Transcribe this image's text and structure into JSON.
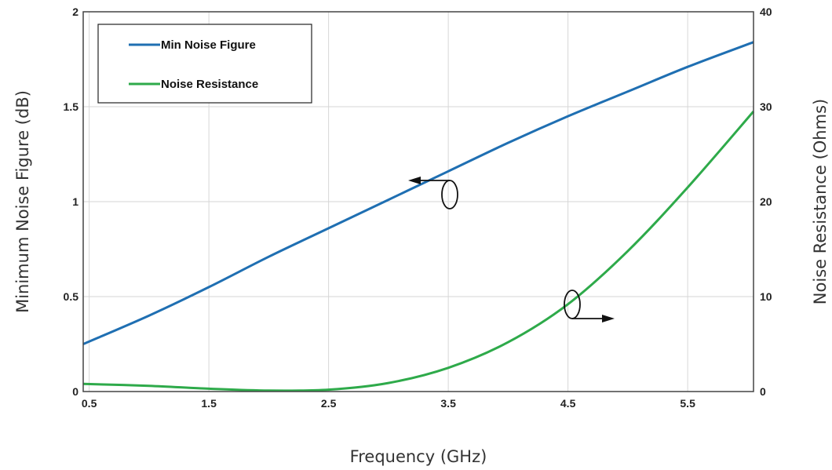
{
  "chart_data": {
    "type": "line",
    "xlabel": "Frequency (GHz)",
    "ylabel_left": "Minimum Noise Figure (dB)",
    "ylabel_right": "Noise Resistance (Ohms)",
    "xlim": [
      0.45,
      6.05
    ],
    "ylim_left": [
      0,
      2
    ],
    "ylim_right": [
      0,
      40
    ],
    "x_ticks": [
      "0.5",
      "1.5",
      "2.5",
      "3.5",
      "4.5",
      "5.5"
    ],
    "y_left_ticks": [
      "0",
      "0.5",
      "1",
      "1.5",
      "2"
    ],
    "y_right_ticks": [
      "0",
      "10",
      "20",
      "30",
      "40"
    ],
    "grid": true,
    "legend_position": "top-left",
    "series": [
      {
        "name": "Min Noise Figure",
        "axis": "left",
        "color": "#1f6fb2",
        "x": [
          0.45,
          1.0,
          1.5,
          2.0,
          2.5,
          3.0,
          3.5,
          4.0,
          4.5,
          5.0,
          5.5,
          6.05
        ],
        "values": [
          0.25,
          0.4,
          0.55,
          0.71,
          0.86,
          1.01,
          1.16,
          1.31,
          1.45,
          1.58,
          1.71,
          1.84
        ]
      },
      {
        "name": "Noise Resistance",
        "axis": "right",
        "color": "#2eaa4a",
        "x": [
          0.45,
          1.0,
          1.5,
          2.0,
          2.5,
          3.0,
          3.5,
          4.0,
          4.5,
          5.0,
          5.5,
          6.05
        ],
        "values": [
          0.8,
          0.6,
          0.3,
          0.1,
          0.2,
          0.9,
          2.5,
          5.2,
          9.2,
          14.8,
          21.5,
          29.5
        ]
      }
    ]
  }
}
